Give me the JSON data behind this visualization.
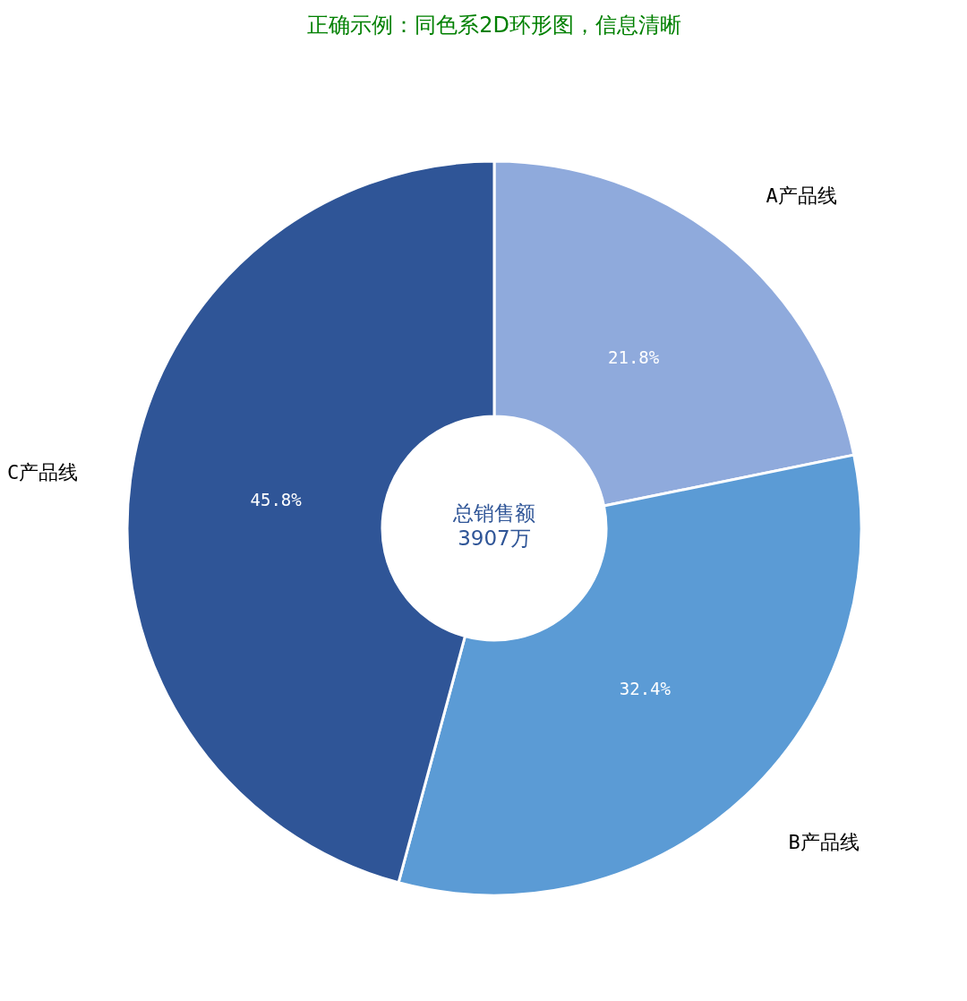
{
  "chart_data": {
    "type": "donut",
    "title": "正确示例：同色系2D环形图，信息清晰",
    "categories": [
      "A产品线",
      "B产品线",
      "C产品线"
    ],
    "values": [
      21.8,
      32.4,
      45.8
    ],
    "value_labels": [
      "21.8%",
      "32.4%",
      "45.8%"
    ],
    "colors": [
      "#8faadc",
      "#5b9bd5",
      "#2f5597"
    ],
    "annotations": [
      "总销售额",
      "3907万"
    ],
    "legend": false
  }
}
